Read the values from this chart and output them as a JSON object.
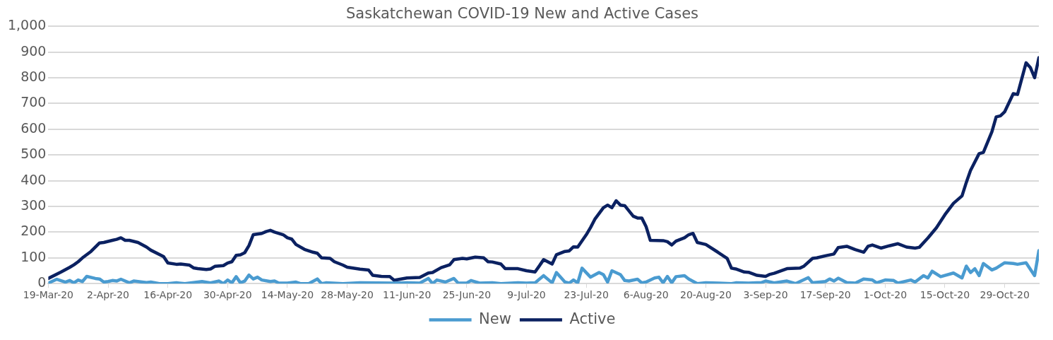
{
  "chart_data": {
    "type": "line",
    "title": "Saskatchewan COVID-19 New and Active Cases",
    "xlim": [
      "--03-19",
      "--11-06"
    ],
    "xticks": [
      {
        "value": "--03-19",
        "label": "19-Mar-20"
      },
      {
        "value": "--04-02",
        "label": "2-Apr-20"
      },
      {
        "value": "--04-16",
        "label": "16-Apr-20"
      },
      {
        "value": "--04-30",
        "label": "30-Apr-20"
      },
      {
        "value": "--05-14",
        "label": "14-May-20"
      },
      {
        "value": "--05-28",
        "label": "28-May-20"
      },
      {
        "value": "--06-11",
        "label": "11-Jun-20"
      },
      {
        "value": "--06-25",
        "label": "25-Jun-20"
      },
      {
        "value": "--07-09",
        "label": "9-Jul-20"
      },
      {
        "value": "--07-23",
        "label": "23-Jul-20"
      },
      {
        "value": "--08-06",
        "label": "6-Aug-20"
      },
      {
        "value": "--08-20",
        "label": "20-Aug-20"
      },
      {
        "value": "--09-03",
        "label": "3-Sep-20"
      },
      {
        "value": "--09-17",
        "label": "17-Sep-20"
      },
      {
        "value": "--10-01",
        "label": "1-Oct-20"
      },
      {
        "value": "--10-15",
        "label": "15-Oct-20"
      },
      {
        "value": "--10-29",
        "label": "29-Oct-20"
      }
    ],
    "ylim": [
      0,
      1000
    ],
    "yticks": [
      0,
      100,
      200,
      300,
      400,
      500,
      600,
      700,
      800,
      900,
      {
        "value": 1000,
        "label": "1,000"
      }
    ],
    "grid": "y",
    "legend": "bottom",
    "marker": "none",
    "line_style": "solid",
    "series": [
      {
        "name": "New",
        "color": "#4a9bd0",
        "x": [
          "--03-19",
          "--03-21",
          "--03-23",
          "--03-24",
          "--03-25",
          "--03-26",
          "--03-27",
          "--03-28",
          "--03-30",
          "--03-31",
          "--04-01",
          "--04-02",
          "--04-03",
          "--04-04",
          "--04-05",
          "--04-07",
          "--04-08",
          "--04-11",
          "--04-12",
          "--04-14",
          "--04-16",
          "--04-18",
          "--04-20",
          "--04-22",
          "--04-24",
          "--04-26",
          "--04-28",
          "--04-29",
          "--04-30",
          "--05-01",
          "--05-02",
          "--05-03",
          "--05-04",
          "--05-05",
          "--05-06",
          "--05-07",
          "--05-08",
          "--05-10",
          "--05-11",
          "--05-12",
          "--05-14",
          "--05-16",
          "--05-17",
          "--05-19",
          "--05-21",
          "--05-22",
          "--05-23",
          "--05-27",
          "--05-31",
          "--06-08",
          "--06-11",
          "--06-14",
          "--06-16",
          "--06-17",
          "--06-18",
          "--06-20",
          "--06-22",
          "--06-23",
          "--06-25",
          "--06-26",
          "--06-28",
          "--07-01",
          "--07-03",
          "--07-07",
          "--07-09",
          "--07-11",
          "--07-13",
          "--07-15",
          "--07-16",
          "--07-18",
          "--07-19",
          "--07-20",
          "--07-21",
          "--07-22",
          "--07-24",
          "--07-26",
          "--07-27",
          "--07-28",
          "--07-29",
          "--07-31",
          "--08-01",
          "--08-02",
          "--08-04",
          "--08-05",
          "--08-06",
          "--08-08",
          "--08-09",
          "--08-10",
          "--08-11",
          "--08-12",
          "--08-13",
          "--08-15",
          "--08-16",
          "--08-18",
          "--08-20",
          "--08-23",
          "--08-26",
          "--08-27",
          "--08-30",
          "--09-02",
          "--09-03",
          "--09-05",
          "--09-08",
          "--09-10",
          "--09-13",
          "--09-14",
          "--09-17",
          "--09-18",
          "--09-19",
          "--09-20",
          "--09-22",
          "--09-24",
          "--09-26",
          "--09-28",
          "--09-29",
          "--10-01",
          "--10-03",
          "--10-04",
          "--10-07",
          "--10-08",
          "--10-10",
          "--10-11",
          "--10-12",
          "--10-14",
          "--10-17",
          "--10-19",
          "--10-20",
          "--10-21",
          "--10-22",
          "--10-23",
          "--10-24",
          "--10-26",
          "--10-27",
          "--10-29",
          "--10-31",
          "--11-01",
          "--11-03",
          "--11-05",
          "--11-06"
        ],
        "values": [
          2,
          17,
          6,
          12,
          3,
          14,
          8,
          28,
          20,
          18,
          6,
          8,
          12,
          10,
          17,
          3,
          10,
          4,
          6,
          0,
          0,
          3,
          0,
          4,
          8,
          3,
          10,
          0,
          14,
          3,
          27,
          3,
          10,
          33,
          18,
          25,
          14,
          8,
          10,
          2,
          2,
          6,
          0,
          0,
          18,
          0,
          3,
          0,
          3,
          2,
          3,
          2,
          20,
          0,
          14,
          6,
          20,
          2,
          2,
          12,
          2,
          3,
          0,
          3,
          2,
          3,
          31,
          3,
          43,
          6,
          2,
          14,
          3,
          60,
          25,
          43,
          35,
          6,
          50,
          35,
          12,
          10,
          17,
          3,
          6,
          22,
          25,
          3,
          28,
          3,
          27,
          31,
          18,
          0,
          3,
          2,
          0,
          3,
          2,
          4,
          10,
          3,
          10,
          0,
          23,
          3,
          8,
          18,
          10,
          21,
          4,
          2,
          18,
          14,
          3,
          14,
          12,
          2,
          14,
          6,
          31,
          22,
          48,
          27,
          41,
          22,
          68,
          43,
          58,
          31,
          78,
          53,
          60,
          81,
          78,
          75,
          81,
          31,
          128
        ]
      },
      {
        "name": "Active",
        "color": "#0b2161",
        "x": [
          "--03-19",
          "--03-22",
          "--03-24",
          "--03-25",
          "--03-26",
          "--03-27",
          "--03-29",
          "--03-31",
          "--04-01",
          "--04-03",
          "--04-04",
          "--04-05",
          "--04-06",
          "--04-07",
          "--04-09",
          "--04-11",
          "--04-12",
          "--04-15",
          "--04-16",
          "--04-18",
          "--04-19",
          "--04-21",
          "--04-22",
          "--04-23",
          "--04-25",
          "--04-26",
          "--04-27",
          "--04-29",
          "--04-30",
          "--05-01",
          "--05-02",
          "--05-03",
          "--05-04",
          "--05-05",
          "--05-06",
          "--05-08",
          "--05-09",
          "--05-10",
          "--05-11",
          "--05-13",
          "--05-14",
          "--05-15",
          "--05-16",
          "--05-18",
          "--05-20",
          "--05-21",
          "--05-22",
          "--05-24",
          "--05-25",
          "--05-27",
          "--05-28",
          "--05-31",
          "--06-02",
          "--06-03",
          "--06-05",
          "--06-07",
          "--06-08",
          "--06-11",
          "--06-14",
          "--06-16",
          "--06-17",
          "--06-19",
          "--06-21",
          "--06-22",
          "--06-24",
          "--06-25",
          "--06-27",
          "--06-29",
          "--06-30",
          "--07-01",
          "--07-03",
          "--07-04",
          "--07-07",
          "--07-09",
          "--07-11",
          "--07-13",
          "--07-15",
          "--07-16",
          "--07-18",
          "--07-19",
          "--07-20",
          "--07-21",
          "--07-23",
          "--07-24",
          "--07-25",
          "--07-27",
          "--07-28",
          "--07-29",
          "--07-30",
          "--07-31",
          "--08-01",
          "--08-03",
          "--08-04",
          "--08-05",
          "--08-06",
          "--08-07",
          "--08-10",
          "--08-11",
          "--08-12",
          "--08-13",
          "--08-15",
          "--08-16",
          "--08-17",
          "--08-18",
          "--08-20",
          "--08-23",
          "--08-25",
          "--08-26",
          "--08-27",
          "--08-29",
          "--08-30",
          "--09-01",
          "--09-03",
          "--09-04",
          "--09-05",
          "--09-08",
          "--09-11",
          "--09-12",
          "--09-14",
          "--09-15",
          "--09-17",
          "--09-19",
          "--09-20",
          "--09-22",
          "--09-24",
          "--09-26",
          "--09-27",
          "--09-28",
          "--09-30",
          "--10-02",
          "--10-04",
          "--10-06",
          "--10-08",
          "--10-09",
          "--10-11",
          "--10-13",
          "--10-15",
          "--10-17",
          "--10-19",
          "--10-20",
          "--10-21",
          "--10-23",
          "--10-24",
          "--10-26",
          "--10-27",
          "--10-28",
          "--10-29",
          "--10-31",
          "--11-01",
          "--11-03",
          "--11-04",
          "--11-05",
          "--11-06"
        ],
        "values": [
          20,
          45,
          63,
          73,
          85,
          100,
          125,
          158,
          160,
          168,
          172,
          178,
          168,
          168,
          160,
          142,
          130,
          105,
          80,
          75,
          76,
          72,
          61,
          58,
          55,
          57,
          67,
          70,
          80,
          85,
          110,
          112,
          120,
          148,
          190,
          195,
          202,
          207,
          200,
          190,
          178,
          173,
          152,
          133,
          122,
          118,
          100,
          98,
          85,
          72,
          64,
          56,
          53,
          32,
          28,
          27,
          13,
          22,
          24,
          41,
          43,
          62,
          73,
          93,
          98,
          96,
          103,
          100,
          85,
          84,
          76,
          58,
          58,
          50,
          45,
          93,
          76,
          112,
          125,
          127,
          143,
          142,
          190,
          218,
          250,
          295,
          305,
          295,
          322,
          305,
          303,
          262,
          255,
          255,
          222,
          168,
          167,
          163,
          150,
          165,
          178,
          190,
          195,
          160,
          152,
          120,
          98,
          60,
          57,
          45,
          44,
          32,
          28,
          36,
          40,
          58,
          60,
          68,
          98,
          100,
          108,
          115,
          140,
          145,
          132,
          122,
          145,
          150,
          138,
          147,
          155,
          142,
          138,
          141,
          177,
          217,
          268,
          312,
          341,
          393,
          440,
          505,
          510,
          590,
          648,
          652,
          668,
          738,
          735,
          858,
          840,
          800,
          878
        ]
      }
    ]
  }
}
